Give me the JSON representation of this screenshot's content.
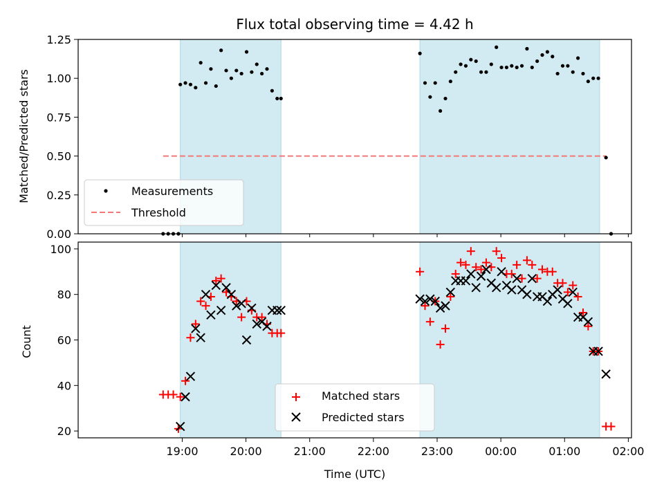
{
  "title": "Flux total observing time = 4.42 h",
  "colors": {
    "measurement": "#000000",
    "threshold": "#f07878",
    "matched": "#ff0000",
    "predicted": "#000000",
    "shade": "#add8e6"
  },
  "chart_data": [
    {
      "type": "scatter",
      "panel": "top",
      "ylabel": "Matched/Predicted stars",
      "xlabel": "",
      "x_unit": "hours since 18:00 UTC",
      "xlim": [
        -0.633,
        8.05
      ],
      "ylim": [
        0,
        1.25
      ],
      "yticks": [
        0,
        0.25,
        0.5,
        0.75,
        1.0,
        1.25
      ],
      "yticklabels": [
        "0.00",
        "0.25",
        "0.50",
        "0.75",
        "1.00",
        "1.25"
      ],
      "observing_windows": [
        [
          0.97,
          2.55
        ],
        [
          4.73,
          7.55
        ]
      ],
      "legend": {
        "position": "lower-left",
        "entries": [
          "Measurements",
          "Threshold"
        ]
      },
      "threshold": {
        "name": "Threshold",
        "y": 0.5,
        "x_range": [
          0.7,
          7.65
        ]
      },
      "series": [
        {
          "name": "Measurements",
          "marker": "dot",
          "x": [
            0.7,
            0.78,
            0.86,
            0.94,
            0.97,
            1.05,
            1.13,
            1.21,
            1.29,
            1.37,
            1.45,
            1.53,
            1.61,
            1.69,
            1.77,
            1.85,
            1.93,
            2.01,
            2.09,
            2.17,
            2.25,
            2.33,
            2.41,
            2.49,
            2.55,
            4.73,
            4.81,
            4.89,
            4.97,
            5.05,
            5.13,
            5.21,
            5.29,
            5.37,
            5.45,
            5.53,
            5.61,
            5.69,
            5.77,
            5.85,
            5.93,
            6.01,
            6.09,
            6.17,
            6.25,
            6.33,
            6.41,
            6.49,
            6.57,
            6.65,
            6.73,
            6.81,
            6.89,
            6.97,
            7.05,
            7.13,
            7.21,
            7.29,
            7.37,
            7.45,
            7.53,
            7.65,
            7.73
          ],
          "y": [
            0.0,
            0.0,
            0.0,
            0.0,
            0.96,
            0.97,
            0.96,
            0.94,
            1.1,
            0.97,
            1.06,
            0.95,
            1.18,
            1.05,
            1.0,
            1.05,
            1.03,
            1.17,
            1.04,
            1.09,
            1.03,
            1.06,
            0.92,
            0.87,
            0.87,
            1.16,
            0.97,
            0.88,
            0.97,
            0.79,
            0.87,
            0.98,
            1.04,
            1.09,
            1.08,
            1.12,
            1.11,
            1.04,
            1.04,
            1.09,
            1.2,
            1.07,
            1.07,
            1.08,
            1.07,
            1.08,
            1.19,
            1.07,
            1.11,
            1.15,
            1.17,
            1.14,
            1.03,
            1.08,
            1.08,
            1.04,
            1.13,
            1.03,
            0.98,
            1.0,
            1.0,
            0.49,
            0.0
          ]
        }
      ]
    },
    {
      "type": "scatter",
      "panel": "bottom",
      "ylabel": "Count",
      "xlabel": "Time (UTC)",
      "x_unit": "hours since 18:00 UTC",
      "xlim": [
        -0.633,
        8.05
      ],
      "ylim": [
        17,
        103
      ],
      "yticks": [
        20,
        40,
        60,
        80,
        100
      ],
      "yticklabels": [
        "20",
        "40",
        "60",
        "80",
        "100"
      ],
      "xticks": [
        1,
        2,
        3,
        4,
        5,
        6,
        7,
        8
      ],
      "xticklabels": [
        "19:00",
        "20:00",
        "21:00",
        "22:00",
        "23:00",
        "00:00",
        "01:00",
        "02:00"
      ],
      "observing_windows": [
        [
          0.97,
          2.55
        ],
        [
          4.73,
          7.55
        ]
      ],
      "legend": {
        "position": "lower-center",
        "entries": [
          "Matched stars",
          "Predicted stars"
        ]
      },
      "series": [
        {
          "name": "Matched stars",
          "marker": "plus",
          "x": [
            0.7,
            0.78,
            0.86,
            0.94,
            0.97,
            1.05,
            1.13,
            1.21,
            1.29,
            1.37,
            1.45,
            1.53,
            1.61,
            1.69,
            1.77,
            1.85,
            1.93,
            2.01,
            2.09,
            2.17,
            2.25,
            2.33,
            2.41,
            2.49,
            2.55,
            4.73,
            4.81,
            4.89,
            4.97,
            5.05,
            5.13,
            5.21,
            5.29,
            5.37,
            5.45,
            5.53,
            5.61,
            5.69,
            5.77,
            5.85,
            5.93,
            6.01,
            6.09,
            6.17,
            6.25,
            6.33,
            6.41,
            6.49,
            6.57,
            6.65,
            6.73,
            6.81,
            6.89,
            6.97,
            7.05,
            7.13,
            7.21,
            7.29,
            7.37,
            7.45,
            7.53,
            7.65,
            7.73
          ],
          "y": [
            36,
            36,
            36,
            21,
            35,
            42,
            61,
            67,
            77,
            75,
            79,
            86,
            87,
            81,
            79,
            77,
            70,
            77,
            73,
            70,
            70,
            67,
            63,
            63,
            63,
            90,
            75,
            68,
            77,
            58,
            65,
            79,
            89,
            94,
            93,
            99,
            92,
            91,
            94,
            92,
            99,
            96,
            89,
            89,
            93,
            87,
            95,
            93,
            87,
            91,
            90,
            90,
            85,
            85,
            81,
            84,
            79,
            72,
            66,
            55,
            55,
            22,
            22
          ]
        },
        {
          "name": "Predicted stars",
          "marker": "x",
          "x": [
            0.97,
            1.05,
            1.13,
            1.21,
            1.29,
            1.37,
            1.45,
            1.53,
            1.61,
            1.69,
            1.77,
            1.85,
            1.93,
            2.01,
            2.09,
            2.17,
            2.25,
            2.33,
            2.41,
            2.49,
            2.55,
            4.73,
            4.81,
            4.89,
            4.97,
            5.05,
            5.13,
            5.21,
            5.29,
            5.37,
            5.45,
            5.53,
            5.61,
            5.69,
            5.77,
            5.85,
            5.93,
            6.01,
            6.09,
            6.17,
            6.25,
            6.33,
            6.41,
            6.49,
            6.57,
            6.65,
            6.73,
            6.81,
            6.89,
            6.97,
            7.05,
            7.13,
            7.21,
            7.29,
            7.37,
            7.45,
            7.53,
            7.65
          ],
          "y": [
            22,
            35,
            44,
            65,
            61,
            80,
            71,
            84,
            73,
            83,
            80,
            75,
            76,
            60,
            74,
            67,
            68,
            66,
            73,
            73,
            73,
            78,
            77,
            78,
            77,
            74,
            75,
            81,
            86,
            86,
            86,
            89,
            83,
            88,
            91,
            85,
            83,
            90,
            84,
            82,
            87,
            82,
            80,
            87,
            79,
            79,
            77,
            80,
            82,
            78,
            76,
            81,
            70,
            70,
            68,
            55,
            55,
            45
          ]
        }
      ]
    }
  ]
}
